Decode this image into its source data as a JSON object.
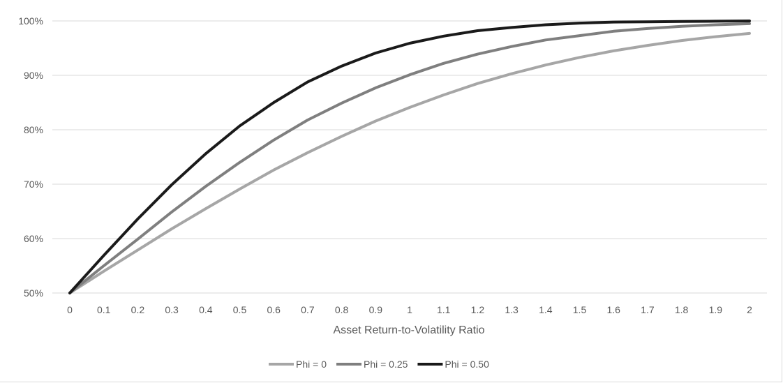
{
  "chart_data": {
    "type": "line",
    "title": "",
    "xlabel": "Asset Return-to-Volatility Ratio",
    "ylabel": "",
    "x": [
      0,
      0.1,
      0.2,
      0.3,
      0.4,
      0.5,
      0.6,
      0.7,
      0.8,
      0.9,
      1,
      1.1,
      1.2,
      1.3,
      1.4,
      1.5,
      1.6,
      1.7,
      1.8,
      1.9,
      2
    ],
    "x_tick_labels": [
      "0",
      "0.1",
      "0.2",
      "0.3",
      "0.4",
      "0.5",
      "0.6",
      "0.7",
      "0.8",
      "0.9",
      "1",
      "1.1",
      "1.2",
      "1.3",
      "1.4",
      "1.5",
      "1.6",
      "1.7",
      "1.8",
      "1.9",
      "2"
    ],
    "y_ticks": [
      50,
      60,
      70,
      80,
      90,
      100
    ],
    "y_tick_labels": [
      "50%",
      "60%",
      "70%",
      "80%",
      "90%",
      "100%"
    ],
    "ylim": [
      50,
      100
    ],
    "grid": true,
    "legend_position": "bottom",
    "series": [
      {
        "name": "Phi = 0",
        "color": "#a6a6a6",
        "values": [
          50,
          54.0,
          57.9,
          61.8,
          65.5,
          69.1,
          72.6,
          75.8,
          78.8,
          81.6,
          84.1,
          86.4,
          88.5,
          90.3,
          91.9,
          93.3,
          94.5,
          95.5,
          96.4,
          97.1,
          97.7
        ]
      },
      {
        "name": "Phi = 0.25",
        "color": "#7f7f7f",
        "values": [
          50,
          55.0,
          59.9,
          64.9,
          69.6,
          74.0,
          78.1,
          81.8,
          84.9,
          87.7,
          90.1,
          92.2,
          93.9,
          95.3,
          96.5,
          97.3,
          98.1,
          98.6,
          99.0,
          99.3,
          99.5
        ]
      },
      {
        "name": "Phi = 0.50",
        "color": "#1a1a1a",
        "values": [
          50,
          56.9,
          63.6,
          69.9,
          75.6,
          80.7,
          85.0,
          88.8,
          91.7,
          94.1,
          95.9,
          97.2,
          98.2,
          98.8,
          99.3,
          99.6,
          99.8,
          99.85,
          99.9,
          99.95,
          100
        ]
      }
    ]
  }
}
